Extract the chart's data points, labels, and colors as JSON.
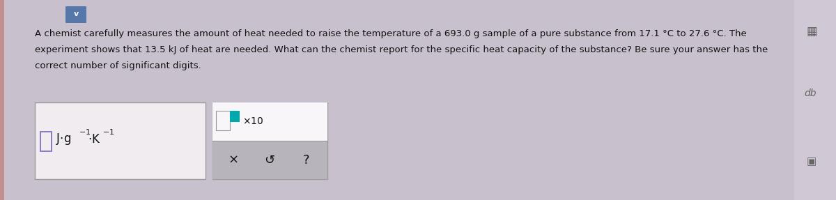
{
  "bg_color": "#c8c0cc",
  "panel_bg": "#ddd8de",
  "text_line1": "A chemist carefully measures the amount of heat needed to raise the temperature of a 693.0 g sample of a pure substance from 17.1 °C to 27.6 °C. The",
  "text_line2": "experiment shows that 13.5 kJ of heat are needed. What can the chemist report for the specific heat capacity of the substance? Be sure your answer has the",
  "text_line3": "correct number of significant digits.",
  "text_fontsize": 9.5,
  "text_color": "#111111",
  "box1_facecolor": "#f0ecf0",
  "box2_facecolor": "#f0ecf0",
  "box_border_color": "#999999",
  "button_bg": "#b8b4bc",
  "chevron_bg": "#5577aa",
  "left_bar_color": "#c09090",
  "right_panel_bg": "#d0c8d4",
  "icon_color": "#666666",
  "teal_color": "#00aaaa",
  "purple_border": "#7766bb"
}
